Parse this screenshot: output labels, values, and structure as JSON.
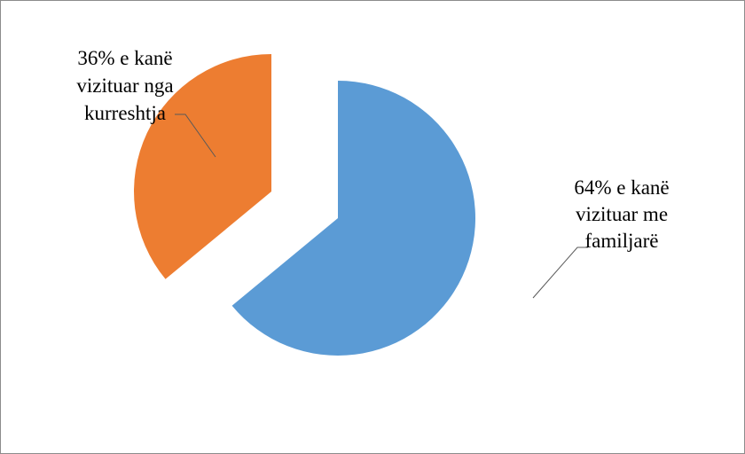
{
  "chart_data": {
    "type": "pie",
    "title": "",
    "slices": [
      {
        "value": 64,
        "label_lines": [
          "64% e kanë",
          "vizituar me",
          "familjarë"
        ],
        "color": "#5b9bd5"
      },
      {
        "value": 36,
        "label_lines": [
          "36% e kanë",
          "vizituar nga",
          "kurreshtja"
        ],
        "color": "#ed7d31"
      }
    ],
    "legend": "none"
  }
}
